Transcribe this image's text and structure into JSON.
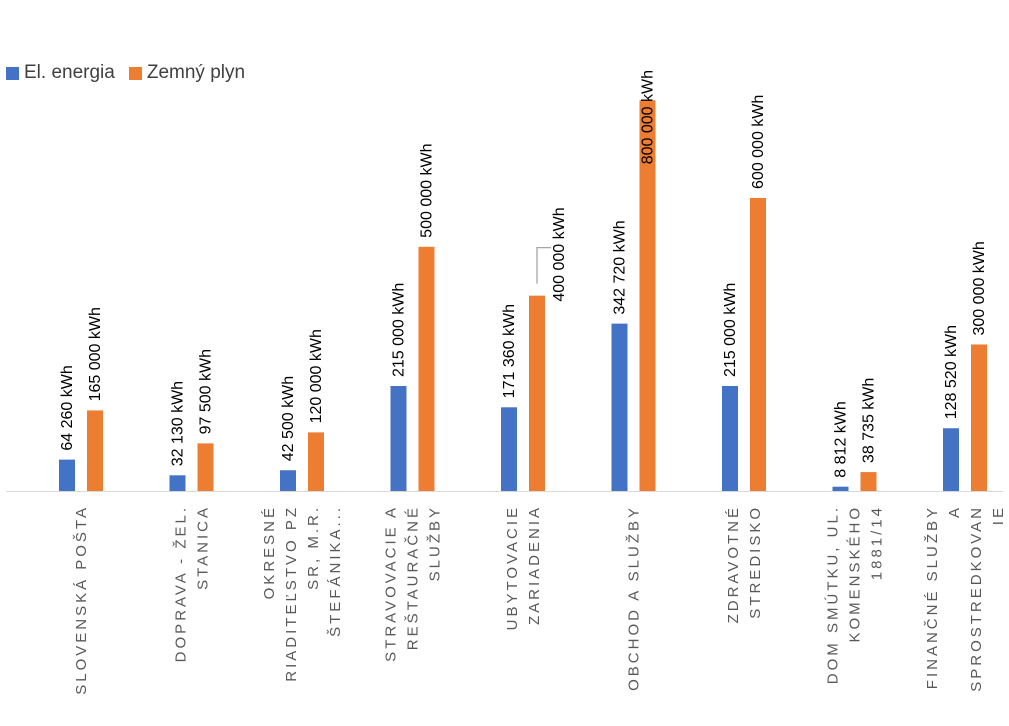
{
  "chart_data": {
    "type": "bar",
    "title": "",
    "xlabel": "",
    "ylabel": "",
    "ylim": [
      0,
      860000
    ],
    "grid": false,
    "legend_position": "top-left",
    "categories": [
      [
        "SLOVENSKÁ POŠTA"
      ],
      [
        "DOPRAVA - ŽEL.",
        "STANICA"
      ],
      [
        "OKRESNÉ",
        "RIADITEĽSTVO PZ",
        "SR, M.R.",
        "ŠTEFÁNIKA..."
      ],
      [
        "STRAVOVACIE A",
        "REŠTAURAČNÉ",
        "SLUŽBY"
      ],
      [
        "UBYTOVACIE",
        "ZARIADENIA"
      ],
      [
        "OBCHOD A SLUŽBY"
      ],
      [
        "ZDRAVOTNÉ",
        "STREDISKO"
      ],
      [
        "DOM SMÚTKU, UL.",
        "KOMENSKÉHO",
        "1881/14"
      ],
      [
        "FINANČNÉ SLUŽBY",
        "A",
        "SPROSTREDKOVAN",
        "IE"
      ]
    ],
    "series": [
      {
        "name": "El. energia",
        "color": "#4472C4",
        "values": [
          64260,
          32130,
          42500,
          215000,
          171360,
          342720,
          215000,
          8812,
          128520
        ],
        "labels": [
          "64 260  kWh",
          "32 130  kWh",
          "42 500  kWh",
          "215 000  kWh",
          "171 360  kWh",
          "342 720  kWh",
          "215 000  kWh",
          "8 812  kWh",
          "128 520  kWh"
        ]
      },
      {
        "name": "Zemný plyn",
        "color": "#ED7D31",
        "values": [
          165000,
          97500,
          120000,
          500000,
          400000,
          800000,
          600000,
          38735,
          300000
        ],
        "labels": [
          "165 000  kWh",
          "97 500  kWh",
          "120 000  kWh",
          "500 000  kWh",
          "400 000  kWh",
          "800 000  kWh",
          "600 000  kWh",
          "38 735  kWh",
          "300 000  kWh"
        ]
      }
    ]
  }
}
